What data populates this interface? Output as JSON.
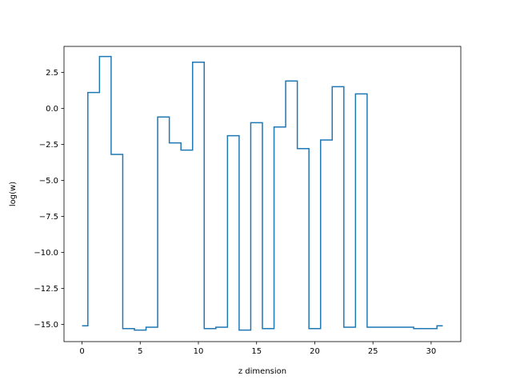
{
  "chart_data": {
    "type": "line",
    "drawstyle": "steps-mid",
    "title": "",
    "xlabel": "z dimension",
    "ylabel": "log(w)",
    "xlim": [
      -1.55,
      32.55
    ],
    "ylim": [
      -16.2,
      4.3
    ],
    "xticks": [
      0,
      5,
      10,
      15,
      20,
      25,
      30
    ],
    "xtick_labels": [
      "0",
      "5",
      "10",
      "15",
      "20",
      "25",
      "30"
    ],
    "yticks": [
      2.5,
      0.0,
      -2.5,
      -5.0,
      -7.5,
      -10.0,
      -12.5,
      -15.0
    ],
    "ytick_labels": [
      "2.5",
      "0.0",
      "−2.5",
      "−5.0",
      "−7.5",
      "−10.0",
      "−12.5",
      "−15.0"
    ],
    "grid": false,
    "line_color": "#1f77b4",
    "series": [
      {
        "x": [
          0,
          1,
          2,
          3,
          4,
          5,
          6,
          7,
          8,
          9,
          10,
          11,
          12,
          13,
          14,
          15,
          16,
          17,
          18,
          19,
          20,
          21,
          22,
          23,
          24,
          25,
          26,
          27,
          28,
          29,
          30,
          31
        ],
        "values": [
          -15.1,
          1.1,
          3.6,
          -3.2,
          -15.3,
          -15.4,
          -15.2,
          -0.6,
          -2.4,
          -2.9,
          3.2,
          -15.3,
          -15.2,
          -1.9,
          -15.4,
          -1.0,
          -15.3,
          -1.3,
          1.9,
          -2.8,
          -15.3,
          -2.2,
          1.5,
          -15.2,
          1.0,
          -15.2,
          -15.2,
          -15.2,
          -15.2,
          -15.3,
          -15.3,
          -15.1
        ]
      }
    ]
  }
}
